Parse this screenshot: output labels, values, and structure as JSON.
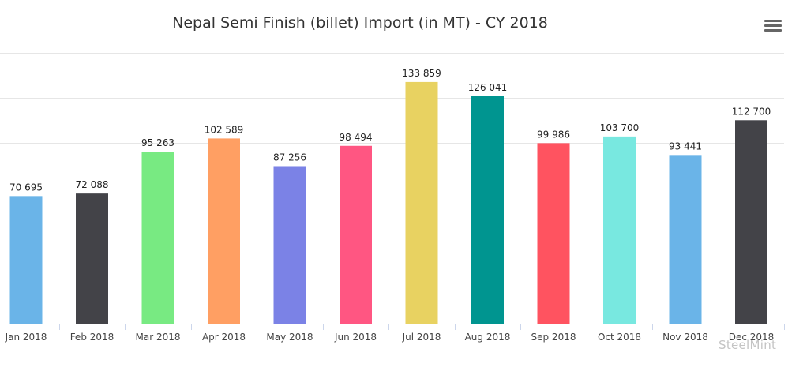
{
  "chart_data": {
    "type": "bar",
    "title": "Nepal Semi Finish (billet) Import (in MT) - CY 2018",
    "categories": [
      "Jan 2018",
      "Feb 2018",
      "Mar 2018",
      "Apr 2018",
      "May 2018",
      "Jun 2018",
      "Jul 2018",
      "Aug 2018",
      "Sep 2018",
      "Oct 2018",
      "Nov 2018",
      "Dec 2018"
    ],
    "values": [
      70695,
      72088,
      95263,
      102589,
      87256,
      98494,
      133859,
      126041,
      99986,
      103700,
      93441,
      112700
    ],
    "value_labels": [
      "70 695",
      "72 088",
      "95 263",
      "102 589",
      "87 256",
      "98 494",
      "133 859",
      "126 041",
      "99 986",
      "103 700",
      "93 441",
      "112 700"
    ],
    "colors": [
      "#6ab4e8",
      "#434348",
      "#78ea82",
      "#ff9f63",
      "#7b82e6",
      "#ff5682",
      "#e8d261",
      "#009590",
      "#ff5360",
      "#78e8e0",
      "#6ab4e8",
      "#434348"
    ],
    "ylim": [
      0,
      150000
    ],
    "gridline_step": 25000,
    "grid": true,
    "xlabel": "",
    "ylabel": ""
  },
  "watermark": "SteelMint",
  "menu_icon": "hamburger-menu-icon"
}
